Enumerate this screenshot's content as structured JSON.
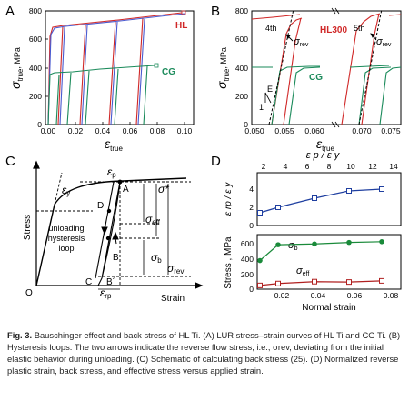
{
  "panels": {
    "A": {
      "letter": "A",
      "ylabel_sym": "σ",
      "ylabel_sub": "true",
      "ylabel_unit": ", MPa",
      "xlabel_sym": "ε",
      "xlabel_sub": "true",
      "yticks": [
        "0",
        "200",
        "400",
        "600",
        "800"
      ],
      "xticks": [
        "0.00",
        "0.02",
        "0.04",
        "0.06",
        "0.08",
        "0.10"
      ],
      "hl_label": "HL",
      "cg_label": "CG"
    },
    "B": {
      "letter": "B",
      "ylabel_sym": "σ",
      "ylabel_sub": "true",
      "ylabel_unit": ", MPa",
      "xlabel_sym": "ε",
      "xlabel_sub": "true",
      "yticks": [
        "0",
        "200",
        "400",
        "600",
        "800"
      ],
      "xticks": [
        "0.050",
        "0.055",
        "0.060",
        "0.070",
        "0.075"
      ],
      "hl_label": "HL300",
      "cg_label": "CG",
      "label_4th": "4th",
      "label_5th": "5th",
      "sigma_rev_1": "σ",
      "sigma_rev_2": "σ",
      "rev_sub": "rev",
      "e_label": "E",
      "one_label": "1"
    },
    "C": {
      "letter": "C",
      "ylabel": "Stress",
      "xlabel": "Strain",
      "origin": "O",
      "pt_A": "A",
      "pt_B": "B",
      "pt_C": "C",
      "pt_D": "D",
      "pt_Bp": "B´",
      "ep_sym": "ε",
      "ep_sub": "p",
      "ey_sym": "ε",
      "ey_sub": "y",
      "erp_sym": "ε",
      "erp_sub": "rp",
      "sigma_star": "σ*",
      "sigma_eff": "σ",
      "eff_sub": "eff",
      "sigma_b": "σ",
      "b_sub": "b",
      "sigma_rev": "σ",
      "rev_sub": "rev",
      "loop_line1": "unloading",
      "loop_line2": "hysteresis",
      "loop_line3": "loop"
    },
    "D": {
      "letter": "D",
      "top_axis_label": "ε p / ε y",
      "top_ticks": [
        "2",
        "4",
        "6",
        "8",
        "10",
        "12",
        "14"
      ],
      "upper_ylabel": "ε rp / ε y",
      "upper_yticks": [
        "0",
        "2",
        "4"
      ],
      "lower_ylabel": "Stress , MPa",
      "lower_yticks": [
        "0",
        "200",
        "400",
        "600"
      ],
      "xticks": [
        "0.02",
        "0.04",
        "0.06",
        "0.08"
      ],
      "xlabel": "Normal strain",
      "sigma_b": "σ",
      "b_sub": "b",
      "sigma_eff": "σ",
      "eff_sub": "eff"
    }
  },
  "caption": {
    "fig_label": "Fig. 3.",
    "text": "Bauschinger effect and back stress of HL Ti. (A) LUR stress–strain curves of HL Ti and CG Ti. (B) Hysteresis loops. The two arrows indicate the reverse flow stress, i.e., σrev, deviating from the initial elastic behavior during unloading. (C) Schematic of calculating back stress (25). (D) Normalized reverse plastic strain, back stress, and effective stress versus applied strain."
  },
  "chart_data": [
    {
      "panel": "D-upper",
      "type": "line",
      "xlabel": "Normal strain",
      "ylabel": "εrp / εy",
      "x": [
        0.008,
        0.018,
        0.038,
        0.057,
        0.075
      ],
      "series": [
        {
          "values": [
            1.4,
            2.0,
            3.0,
            3.8,
            4.0
          ]
        }
      ],
      "color": "#1f3fa0",
      "ylim": [
        0,
        4.5
      ]
    },
    {
      "panel": "D-lower",
      "type": "line",
      "xlabel": "Normal strain",
      "ylabel": "Stress, MPa",
      "x": [
        0.008,
        0.018,
        0.038,
        0.057,
        0.075
      ],
      "series": [
        {
          "name": "σb",
          "values": [
            380,
            590,
            600,
            620,
            630
          ],
          "color": "#1a8a3a"
        },
        {
          "name": "σeff",
          "values": [
            50,
            75,
            100,
            95,
            110
          ],
          "color": "#b02020"
        }
      ],
      "ylim": [
        0,
        700
      ]
    }
  ]
}
